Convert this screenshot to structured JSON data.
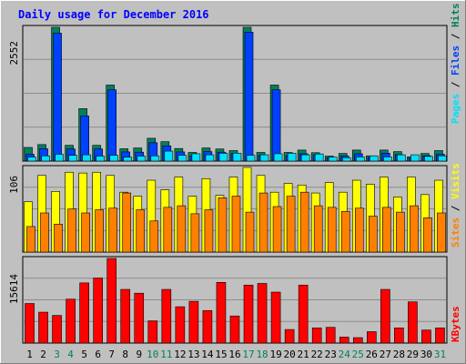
{
  "title": "Daily usage for December 2016",
  "colors": {
    "background": "#c0c0c0",
    "hits": "#00805c",
    "files": "#0040ff",
    "pages": "#00e0ff",
    "visits": "#ffff00",
    "sites": "#ff8000",
    "kbytes": "#ff0000",
    "weekend_label": "#00805c",
    "weekday_label": "#000000"
  },
  "chart_data": [
    {
      "type": "bar",
      "panel": "top",
      "categories": [
        "1",
        "2",
        "3",
        "4",
        "5",
        "6",
        "7",
        "8",
        "9",
        "10",
        "11",
        "12",
        "13",
        "14",
        "15",
        "16",
        "17",
        "18",
        "19",
        "20",
        "21",
        "22",
        "23",
        "24",
        "25",
        "26",
        "27",
        "28",
        "29",
        "30",
        "31"
      ],
      "weekend_days": [
        "3",
        "4",
        "10",
        "11",
        "17",
        "18",
        "24",
        "25",
        "31"
      ],
      "y_max_label": "2552",
      "right_labels": [
        "Pages",
        "Files",
        "Hits"
      ],
      "series": [
        {
          "name": "Hits",
          "values": [
            260,
            315,
            2552,
            300,
            1000,
            300,
            1450,
            235,
            250,
            435,
            370,
            240,
            165,
            250,
            230,
            200,
            2552,
            165,
            1450,
            165,
            210,
            160,
            95,
            145,
            210,
            100,
            210,
            180,
            80,
            145,
            200
          ]
        },
        {
          "name": "Files",
          "values": [
            130,
            235,
            2440,
            230,
            860,
            230,
            1360,
            175,
            170,
            350,
            290,
            175,
            95,
            180,
            170,
            145,
            2460,
            105,
            1360,
            100,
            140,
            110,
            65,
            95,
            140,
            70,
            150,
            120,
            60,
            100,
            130
          ]
        },
        {
          "name": "Pages",
          "values": [
            75,
            100,
            130,
            110,
            120,
            95,
            110,
            75,
            95,
            100,
            190,
            110,
            140,
            120,
            150,
            150,
            110,
            120,
            140,
            150,
            120,
            135,
            75,
            65,
            80,
            100,
            80,
            120,
            120,
            90,
            100
          ]
        }
      ]
    },
    {
      "type": "bar",
      "panel": "middle",
      "categories": [
        "1",
        "2",
        "3",
        "4",
        "5",
        "6",
        "7",
        "8",
        "9",
        "10",
        "11",
        "12",
        "13",
        "14",
        "15",
        "16",
        "17",
        "18",
        "19",
        "20",
        "21",
        "22",
        "23",
        "24",
        "25",
        "26",
        "27",
        "28",
        "29",
        "30",
        "31"
      ],
      "y_max_label": "106",
      "right_labels": [
        "Sites",
        "Visits"
      ],
      "series": [
        {
          "name": "Visits",
          "values": [
            63,
            96,
            76,
            100,
            99,
            100,
            96,
            75,
            70,
            90,
            78,
            94,
            70,
            92,
            71,
            94,
            106,
            96,
            75,
            86,
            84,
            74,
            87,
            75,
            90,
            85,
            94,
            69,
            94,
            72,
            90
          ]
        },
        {
          "name": "Sites",
          "values": [
            32,
            49,
            35,
            54,
            49,
            53,
            55,
            74,
            53,
            39,
            56,
            58,
            48,
            53,
            68,
            70,
            50,
            74,
            57,
            70,
            75,
            58,
            56,
            51,
            55,
            45,
            56,
            50,
            58,
            43,
            49
          ]
        }
      ]
    },
    {
      "type": "bar",
      "panel": "bottom",
      "categories": [
        "1",
        "2",
        "3",
        "4",
        "5",
        "6",
        "7",
        "8",
        "9",
        "10",
        "11",
        "12",
        "13",
        "14",
        "15",
        "16",
        "17",
        "18",
        "19",
        "20",
        "21",
        "22",
        "23",
        "24",
        "25",
        "26",
        "27",
        "28",
        "29",
        "30",
        "31"
      ],
      "y_max_label": "15614",
      "right_labels": [
        "KBytes"
      ],
      "series": [
        {
          "name": "KBytes",
          "values": [
            7300,
            5700,
            5100,
            8100,
            11100,
            12000,
            15614,
            9900,
            9200,
            4100,
            9900,
            6700,
            7700,
            6000,
            11200,
            5000,
            10700,
            11000,
            9400,
            2500,
            10700,
            2800,
            2900,
            1100,
            1000,
            2100,
            9900,
            2800,
            7600,
            2400,
            2800
          ]
        }
      ]
    }
  ]
}
